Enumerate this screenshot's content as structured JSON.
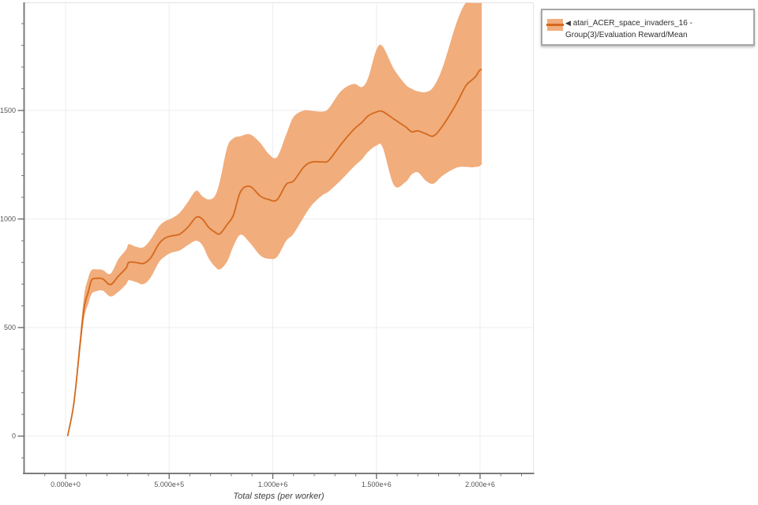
{
  "chart_data": {
    "type": "line",
    "title": "",
    "xlabel": "Total steps (per worker)",
    "ylabel": "",
    "grid": true,
    "legend_position": "top-right",
    "x_axis": {
      "range": [
        -200000,
        2257000
      ],
      "minor_tick_step": 100000,
      "major_ticks": [
        {
          "value": 0,
          "label": "0.000e+0"
        },
        {
          "value": 500000,
          "label": "5.000e+5"
        },
        {
          "value": 1000000,
          "label": "1.000e+6"
        },
        {
          "value": 1500000,
          "label": "1.500e+6"
        },
        {
          "value": 2000000,
          "label": "2.000e+6"
        }
      ]
    },
    "y_axis": {
      "range": [
        -172,
        1994
      ],
      "minor_tick_step": 100,
      "major_ticks": [
        {
          "value": 0,
          "label": "0"
        },
        {
          "value": 500,
          "label": "500"
        },
        {
          "value": 1000,
          "label": "1000"
        },
        {
          "value": 1500,
          "label": "1500"
        }
      ]
    },
    "series": [
      {
        "name": "atari_ACER_space_invaders_16 - Group(3)/Evaluation Reward/Mean",
        "line_color": "#d4691c",
        "band_color": "#f1ad7c",
        "x": [
          10000,
          40000,
          70000,
          90000,
          110000,
          126000,
          150000,
          180000,
          217000,
          255000,
          293000,
          305000,
          340000,
          375000,
          410000,
          450000,
          480000,
          510000,
          550000,
          590000,
          630000,
          660000,
          690000,
          720000,
          745000,
          780000,
          810000,
          845000,
          890000,
          940000,
          980000,
          1020000,
          1065000,
          1100000,
          1150000,
          1190000,
          1240000,
          1270000,
          1330000,
          1390000,
          1430000,
          1460000,
          1500000,
          1530000,
          1585000,
          1640000,
          1670000,
          1700000,
          1740000,
          1776000,
          1820000,
          1885000,
          1930000,
          1960000,
          1980000,
          1995000,
          2008000
        ],
        "mean": [
          0,
          150,
          420,
          592,
          665,
          719,
          727,
          724,
          698,
          737,
          775,
          800,
          800,
          795,
          820,
          885,
          912,
          922,
          930,
          962,
          1008,
          1000,
          962,
          940,
          932,
          975,
          1018,
          1127,
          1150,
          1105,
          1090,
          1088,
          1160,
          1175,
          1240,
          1263,
          1263,
          1270,
          1345,
          1412,
          1445,
          1475,
          1493,
          1495,
          1460,
          1425,
          1402,
          1406,
          1392,
          1383,
          1430,
          1530,
          1612,
          1640,
          1658,
          1682,
          1690
        ],
        "band_lower": [
          0,
          140,
          395,
          545,
          610,
          655,
          668,
          670,
          643,
          665,
          700,
          718,
          710,
          700,
          730,
          800,
          828,
          845,
          855,
          880,
          900,
          880,
          820,
          782,
          768,
          805,
          875,
          928,
          890,
          832,
          817,
          825,
          900,
          932,
          1010,
          1066,
          1110,
          1127,
          1180,
          1240,
          1275,
          1310,
          1338,
          1330,
          1155,
          1170,
          1205,
          1215,
          1175,
          1163,
          1200,
          1236,
          1240,
          1238,
          1240,
          1242,
          1252
        ],
        "band_upper": [
          0,
          168,
          465,
          650,
          730,
          765,
          768,
          765,
          748,
          815,
          860,
          884,
          872,
          870,
          905,
          965,
          990,
          1002,
          1028,
          1078,
          1130,
          1105,
          1090,
          1105,
          1175,
          1330,
          1372,
          1382,
          1390,
          1350,
          1300,
          1285,
          1390,
          1470,
          1500,
          1498,
          1495,
          1510,
          1590,
          1622,
          1608,
          1650,
          1780,
          1795,
          1690,
          1620,
          1600,
          1588,
          1585,
          1610,
          1700,
          1900,
          1995,
          1995,
          1995,
          1995,
          1995
        ]
      }
    ]
  },
  "legend": {
    "collapse_icon": "◀"
  },
  "colors": {
    "background": "#ffffff",
    "grid": "#ededed",
    "plot_border": "#e3e3e3",
    "spine": "#7c7c7c",
    "tick": "#777777",
    "tick_label": "#555555",
    "axis_title": "#3f3f3f",
    "legend_border": "#a6a6a6",
    "legend_text": "#2e2e2e"
  }
}
